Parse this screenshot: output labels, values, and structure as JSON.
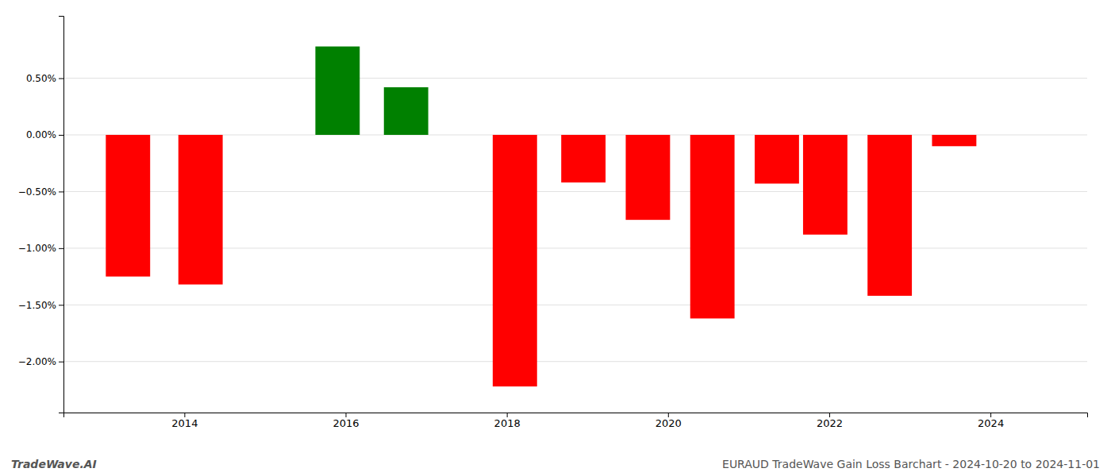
{
  "chart_data": {
    "type": "bar",
    "x": [
      2013.3,
      2014.2,
      2015.9,
      2016.75,
      2018.1,
      2018.95,
      2019.75,
      2020.55,
      2021.35,
      2021.95,
      2022.75,
      2023.55
    ],
    "values": [
      -1.25,
      -1.32,
      0.78,
      0.42,
      -2.22,
      -0.42,
      -0.75,
      -1.62,
      -0.43,
      -0.88,
      -1.42,
      -0.1
    ],
    "colors": [
      "#ff0000",
      "#ff0000",
      "#008000",
      "#008000",
      "#ff0000",
      "#ff0000",
      "#ff0000",
      "#ff0000",
      "#ff0000",
      "#ff0000",
      "#ff0000",
      "#ff0000"
    ],
    "xlim": [
      2012.5,
      2025.2
    ],
    "xticks": [
      2014,
      2016,
      2018,
      2020,
      2022,
      2024
    ],
    "ylim": [
      -2.45,
      1.05
    ],
    "yticks": [
      {
        "value": -2.0,
        "label": "−2.00%"
      },
      {
        "value": -1.5,
        "label": "−1.50%"
      },
      {
        "value": -1.0,
        "label": "−1.00%"
      },
      {
        "value": -0.5,
        "label": "−0.50%"
      },
      {
        "value": 0.0,
        "label": "0.00%"
      },
      {
        "value": 0.5,
        "label": "0.50%"
      }
    ],
    "grid": "y",
    "annotations": [
      "TradeWave.AI",
      "EURAUD TradeWave Gain Loss Barchart - 2024-10-20 to 2024-11-01"
    ]
  }
}
